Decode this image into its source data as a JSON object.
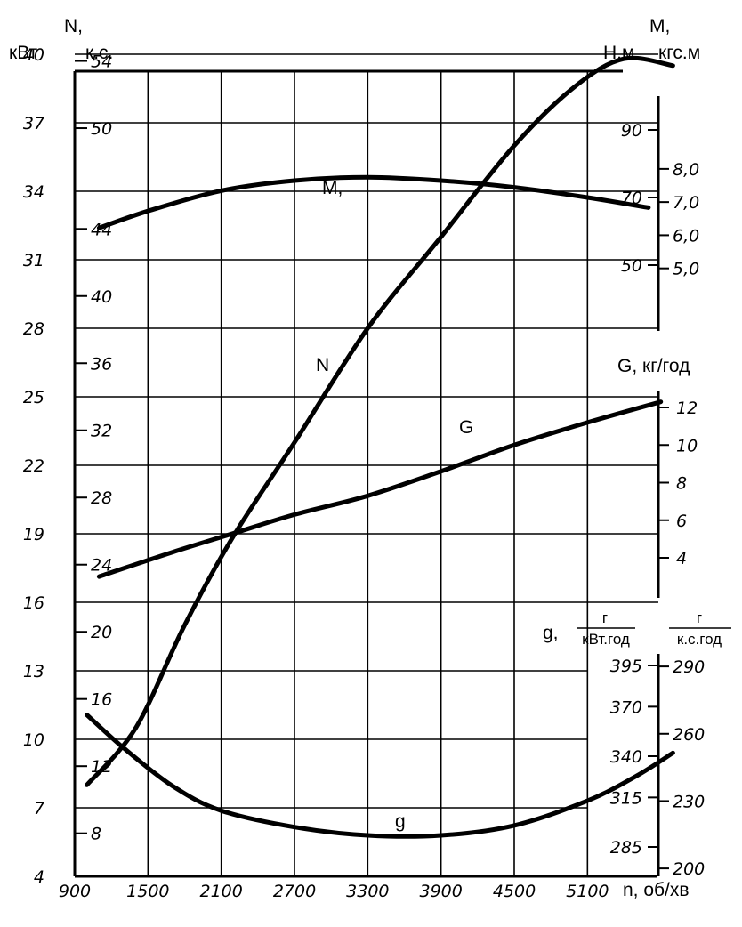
{
  "chart_data": {
    "type": "line",
    "x": {
      "label": "n, об/хв",
      "ticks": [
        900,
        1500,
        2100,
        2700,
        3300,
        3900,
        4500,
        5100
      ],
      "range": [
        900,
        5800
      ]
    },
    "y_left_kw": {
      "header": "N,",
      "unit": "кВт",
      "ticks": [
        4,
        7,
        10,
        13,
        16,
        19,
        22,
        25,
        28,
        31,
        34,
        37,
        40
      ],
      "range": [
        4,
        40
      ]
    },
    "y_left_hp": {
      "unit": "к.с.",
      "ticks": [
        8,
        12,
        16,
        20,
        24,
        28,
        32,
        36,
        40,
        44,
        50,
        54
      ]
    },
    "y_right_torque_nm": {
      "header": "М,",
      "unit": "Н.м",
      "ticks": [
        50,
        70,
        90
      ]
    },
    "y_right_torque_kgsm": {
      "unit": "кгс.м",
      "ticks": [
        "5,0",
        "6,0",
        "7,0",
        "8,0"
      ]
    },
    "y_right_fuel_hourly": {
      "label": "G, кг/год",
      "ticks": [
        4,
        6,
        8,
        10,
        12
      ]
    },
    "y_right_specific_kwh": {
      "label": "g,",
      "numerator": "г",
      "denominator": "кВт.год",
      "ticks": [
        285,
        315,
        340,
        370,
        395
      ]
    },
    "y_right_specific_hph": {
      "numerator": "г",
      "denominator": "к.с.год",
      "ticks": [
        200,
        230,
        260,
        290
      ]
    },
    "series": [
      {
        "name": "N",
        "unit": "кВт",
        "points": [
          [
            1000,
            8
          ],
          [
            1400,
            10.5
          ],
          [
            1800,
            15
          ],
          [
            2200,
            18.9
          ],
          [
            2700,
            23
          ],
          [
            3300,
            28
          ],
          [
            3900,
            32
          ],
          [
            4500,
            36
          ],
          [
            5000,
            38.6
          ],
          [
            5400,
            39.8
          ],
          [
            5800,
            39.5
          ]
        ]
      },
      {
        "name": "M,",
        "unit": "Н.м",
        "points": [
          [
            1100,
            61
          ],
          [
            1500,
            66
          ],
          [
            2100,
            72
          ],
          [
            2700,
            75
          ],
          [
            3300,
            76
          ],
          [
            3900,
            75
          ],
          [
            4500,
            73
          ],
          [
            5100,
            70
          ],
          [
            5600,
            67
          ]
        ]
      },
      {
        "name": "G",
        "unit": "кг/год",
        "points": [
          [
            1100,
            3
          ],
          [
            1700,
            4.3
          ],
          [
            2200,
            5.3
          ],
          [
            2700,
            6.3
          ],
          [
            3300,
            7.3
          ],
          [
            3900,
            8.6
          ],
          [
            4500,
            10
          ],
          [
            5100,
            11.2
          ],
          [
            5700,
            12.3
          ]
        ]
      },
      {
        "name": "g",
        "unit": "г/кВт.год",
        "points": [
          [
            1000,
            365
          ],
          [
            1300,
            345
          ],
          [
            1700,
            322
          ],
          [
            2100,
            307
          ],
          [
            2700,
            297
          ],
          [
            3300,
            292
          ],
          [
            3900,
            292
          ],
          [
            4500,
            298
          ],
          [
            5100,
            313
          ],
          [
            5500,
            328
          ],
          [
            5800,
            342
          ]
        ]
      }
    ]
  }
}
